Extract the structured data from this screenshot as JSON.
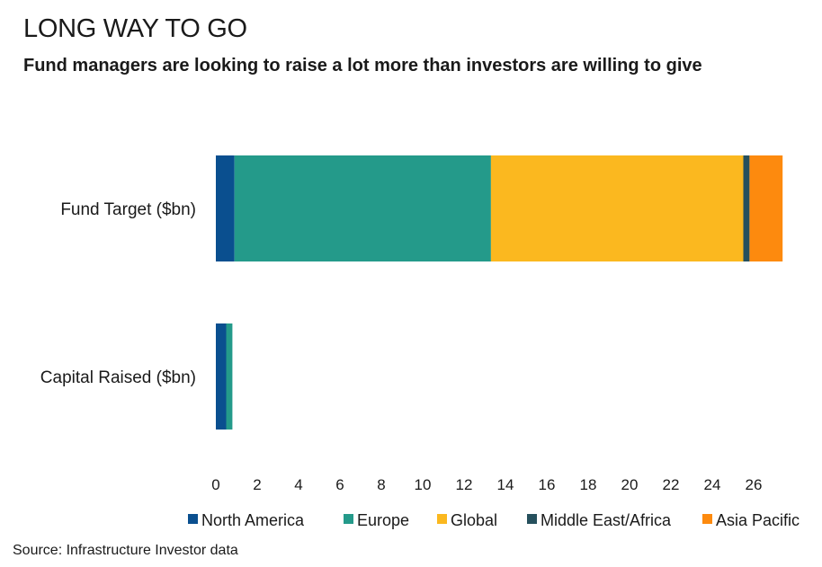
{
  "title": "LONG WAY TO GO",
  "subtitle": "Fund managers are looking to raise a lot more than investors are willing to give",
  "source": "Source: Infrastructure Investor data",
  "chart_data": {
    "type": "bar",
    "orientation": "horizontal",
    "stacked": true,
    "categories": [
      "Fund Target ($bn)",
      "Capital Raised ($bn)"
    ],
    "series": [
      {
        "name": "North America",
        "color": "#0a4f8f",
        "values": [
          0.9,
          0.5
        ]
      },
      {
        "name": "Europe",
        "color": "#249a8a",
        "values": [
          12.4,
          0.3
        ]
      },
      {
        "name": "Global",
        "color": "#fbb81f",
        "values": [
          12.2,
          0
        ]
      },
      {
        "name": "Middle East/Africa",
        "color": "#26505d",
        "values": [
          0.3,
          0
        ]
      },
      {
        "name": "Asia Pacific",
        "color": "#fd8a0e",
        "values": [
          1.6,
          0
        ]
      }
    ],
    "xlim": [
      0,
      27
    ],
    "xticks": [
      0,
      2,
      4,
      6,
      8,
      10,
      12,
      14,
      16,
      18,
      20,
      22,
      24,
      26
    ],
    "grid": false,
    "legend_position": "bottom"
  }
}
